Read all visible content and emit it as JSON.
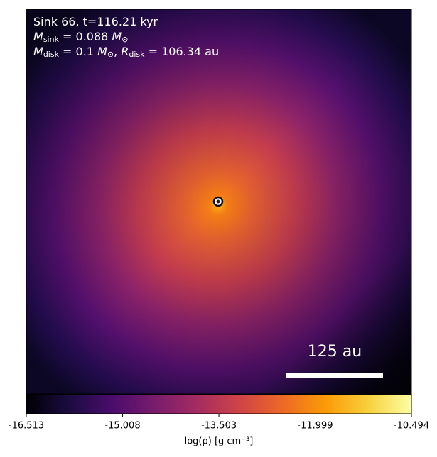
{
  "chart_data": {
    "type": "image",
    "annotation_lines": [
      [
        {
          "t": "Sink 66, t=116.21 kyr",
          "s": "n"
        }
      ],
      [
        {
          "t": "M",
          "s": "i"
        },
        {
          "t": "sink",
          "s": "sub"
        },
        {
          "t": " = 0.088 ",
          "s": "n"
        },
        {
          "t": "M",
          "s": "i"
        },
        {
          "t": "⊙",
          "s": "sub"
        }
      ],
      [
        {
          "t": "M",
          "s": "i"
        },
        {
          "t": "disk",
          "s": "sub"
        },
        {
          "t": " = 0.1 ",
          "s": "n"
        },
        {
          "t": "M",
          "s": "i"
        },
        {
          "t": "⊙",
          "s": "sub"
        },
        {
          "t": ", ",
          "s": "n"
        },
        {
          "t": "R",
          "s": "i"
        },
        {
          "t": "disk",
          "s": "sub"
        },
        {
          "t": " = 106.34 au",
          "s": "n"
        }
      ]
    ],
    "scale_bar_label": "125 au",
    "colormap": "inferno",
    "colorbar_label": "log(ρ) [g cm⁻³]",
    "clim": [
      -16.513,
      -10.494
    ],
    "cticks": [
      -16.513,
      -15.008,
      -13.503,
      -11.999,
      -10.494
    ]
  }
}
